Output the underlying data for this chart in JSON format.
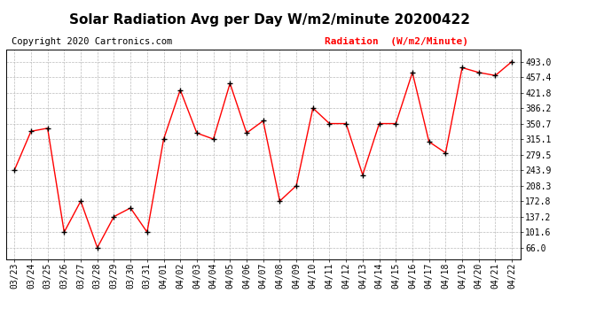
{
  "title": "Solar Radiation Avg per Day W/m2/minute 20200422",
  "copyright_text": "Copyright 2020 Cartronics.com",
  "legend_label": "Radiation  (W/m2/Minute)",
  "dates": [
    "03/23",
    "03/24",
    "03/25",
    "03/26",
    "03/27",
    "03/28",
    "03/29",
    "03/30",
    "03/31",
    "04/01",
    "04/02",
    "04/03",
    "04/04",
    "04/05",
    "04/06",
    "04/07",
    "04/08",
    "04/09",
    "04/10",
    "04/11",
    "04/12",
    "04/13",
    "04/14",
    "04/15",
    "04/16",
    "04/17",
    "04/18",
    "04/19",
    "04/20",
    "04/21",
    "04/22"
  ],
  "values": [
    243.9,
    333.0,
    340.0,
    101.6,
    172.8,
    66.0,
    137.2,
    157.0,
    101.6,
    315.1,
    428.0,
    329.0,
    315.1,
    443.0,
    329.0,
    357.0,
    172.8,
    208.3,
    386.2,
    350.7,
    350.7,
    233.0,
    350.7,
    350.7,
    468.0,
    309.0,
    283.5,
    479.0,
    468.0,
    461.0,
    493.0
  ],
  "yticks": [
    66.0,
    101.6,
    137.2,
    172.8,
    208.3,
    243.9,
    279.5,
    315.1,
    350.7,
    386.2,
    421.8,
    457.4,
    493.0
  ],
  "ylim": [
    40,
    520
  ],
  "line_color": "red",
  "marker_color": "black",
  "bg_color": "white",
  "grid_color": "#bbbbbb",
  "title_fontsize": 11,
  "tick_fontsize": 7,
  "copyright_fontsize": 7.5,
  "legend_fontsize": 8
}
